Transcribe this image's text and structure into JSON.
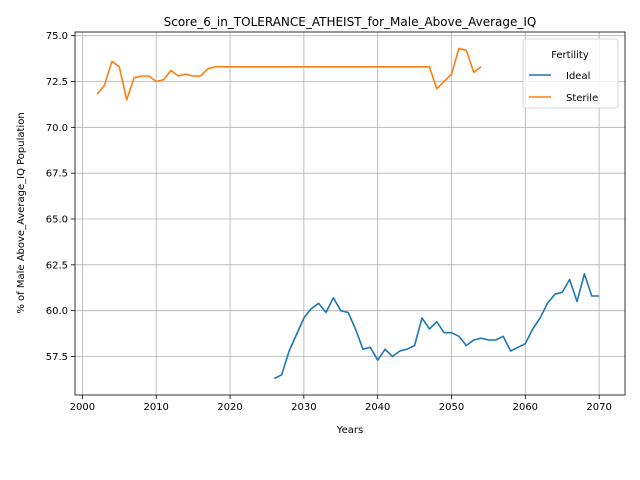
{
  "chart_data": {
    "type": "line",
    "title": "Score_6_in_TOLERANCE_ATHEIST_for_Male_Above_Average_IQ",
    "xlabel": "Years",
    "ylabel": "% of Male Above_Average_IQ Population",
    "xlim": [
      1999,
      2073.5
    ],
    "ylim": [
      55.4,
      75.2
    ],
    "xticks": [
      2000,
      2010,
      2020,
      2030,
      2040,
      2050,
      2060,
      2070
    ],
    "xtick_labels": [
      "2000",
      "2010",
      "2020",
      "2030",
      "2040",
      "2050",
      "2060",
      "2070"
    ],
    "yticks": [
      57.5,
      60.0,
      62.5,
      65.0,
      67.5,
      70.0,
      72.5,
      75.0
    ],
    "ytick_labels": [
      "57.5",
      "60.0",
      "62.5",
      "65.0",
      "67.5",
      "70.0",
      "72.5",
      "75.0"
    ],
    "grid": true,
    "legend": {
      "title": "Fertility",
      "position": "top-right"
    },
    "series": [
      {
        "name": "Ideal",
        "color": "#1f77b4",
        "x": [
          2026,
          2027,
          2028,
          2029,
          2030,
          2031,
          2032,
          2033,
          2034,
          2035,
          2036,
          2037,
          2038,
          2039,
          2040,
          2041,
          2042,
          2043,
          2044,
          2045,
          2046,
          2047,
          2048,
          2049,
          2050,
          2051,
          2052,
          2053,
          2054,
          2055,
          2056,
          2057,
          2058,
          2059,
          2060,
          2061,
          2062,
          2063,
          2064,
          2065,
          2066,
          2067,
          2068,
          2069,
          2070
        ],
        "values": [
          56.3,
          56.5,
          57.8,
          58.7,
          59.6,
          60.1,
          60.4,
          59.9,
          60.7,
          60.0,
          59.9,
          59.0,
          57.9,
          58.0,
          57.3,
          57.9,
          57.5,
          57.8,
          57.9,
          58.1,
          59.6,
          59.0,
          59.4,
          58.8,
          58.8,
          58.6,
          58.1,
          58.4,
          58.5,
          58.4,
          58.4,
          58.6,
          57.8,
          58.0,
          58.2,
          59.0,
          59.6,
          60.4,
          60.9,
          61.0,
          61.7,
          60.5,
          62.0,
          60.8,
          60.8
        ]
      },
      {
        "name": "Sterile",
        "color": "#ff7f0e",
        "x": [
          2002,
          2003,
          2004,
          2005,
          2006,
          2007,
          2008,
          2009,
          2010,
          2011,
          2012,
          2013,
          2014,
          2015,
          2016,
          2017,
          2018,
          2019,
          2020,
          2021,
          2022,
          2023,
          2024,
          2025,
          2026,
          2027,
          2028,
          2029,
          2030,
          2031,
          2032,
          2033,
          2034,
          2035,
          2036,
          2037,
          2038,
          2039,
          2040,
          2041,
          2042,
          2043,
          2044,
          2045,
          2046,
          2047,
          2048,
          2049,
          2050,
          2051,
          2052,
          2053,
          2054
        ],
        "values": [
          71.8,
          72.3,
          73.6,
          73.3,
          71.5,
          72.7,
          72.8,
          72.8,
          72.5,
          72.6,
          73.1,
          72.8,
          72.9,
          72.8,
          72.8,
          73.2,
          73.3,
          73.3,
          73.3,
          73.3,
          73.3,
          73.3,
          73.3,
          73.3,
          73.3,
          73.3,
          73.3,
          73.3,
          73.3,
          73.3,
          73.3,
          73.3,
          73.3,
          73.3,
          73.3,
          73.3,
          73.3,
          73.3,
          73.3,
          73.3,
          73.3,
          73.3,
          73.3,
          73.3,
          73.3,
          73.3,
          72.1,
          72.5,
          72.9,
          74.3,
          74.2,
          73.0,
          73.3
        ]
      }
    ]
  }
}
